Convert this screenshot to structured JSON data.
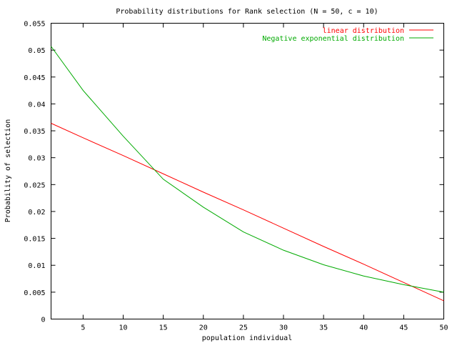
{
  "chart_data": {
    "type": "line",
    "title": "Probability distributions for Rank selection (N = 50, c = 10)",
    "xlabel": "population individual",
    "ylabel": "Probability of selection",
    "xlim": [
      1,
      50
    ],
    "ylim": [
      0,
      0.055
    ],
    "x_ticks": [
      5,
      10,
      15,
      20,
      25,
      30,
      35,
      40,
      45,
      50
    ],
    "y_ticks": [
      0,
      0.005,
      0.01,
      0.015,
      0.02,
      0.025,
      0.03,
      0.035,
      0.04,
      0.045,
      0.05,
      0.055
    ],
    "y_tick_labels": [
      "0",
      "0.005",
      "0.01",
      "0.015",
      "0.02",
      "0.025",
      "0.03",
      "0.035",
      "0.04",
      "0.045",
      "0.05",
      "0.055"
    ],
    "grid": false,
    "legend_position": "top-right",
    "series": [
      {
        "name": "linear distribution",
        "color": "#ff0000",
        "x": [
          1,
          5,
          10,
          15,
          20,
          25,
          30,
          35,
          40,
          45,
          50
        ],
        "y": [
          0.0364,
          0.0337,
          0.0304,
          0.027,
          0.0236,
          0.0203,
          0.0169,
          0.0135,
          0.0102,
          0.0068,
          0.0034
        ]
      },
      {
        "name": "Negative exponential distribution",
        "color": "#00aa00",
        "x": [
          1,
          5,
          10,
          15,
          20,
          25,
          30,
          35,
          40,
          45,
          50
        ],
        "y": [
          0.0507,
          0.0425,
          0.034,
          0.026,
          0.0208,
          0.0162,
          0.0128,
          0.0101,
          0.008,
          0.0064,
          0.005
        ]
      }
    ]
  }
}
